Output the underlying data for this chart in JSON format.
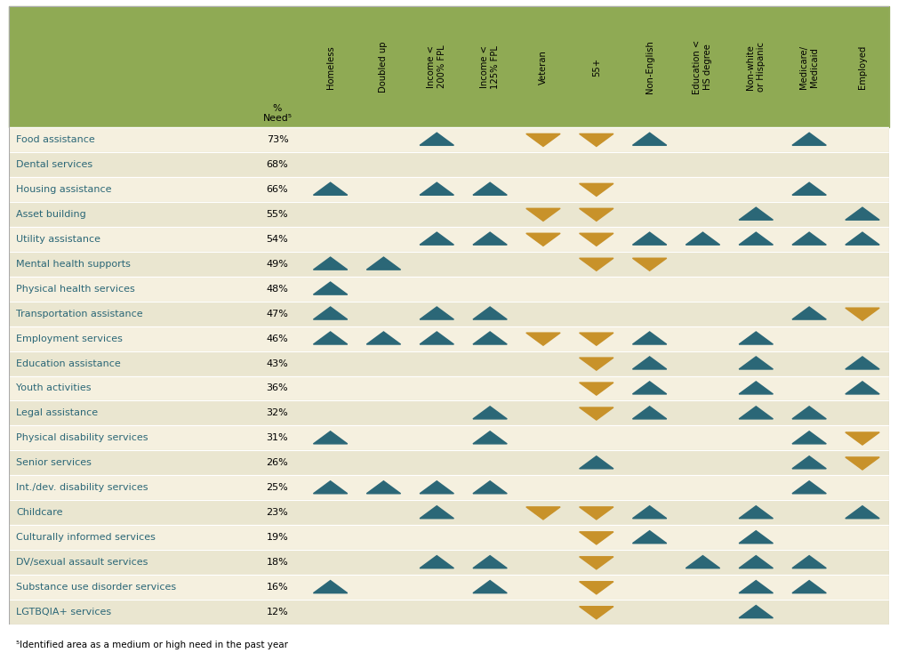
{
  "header_bg": "#8faa54",
  "row_bg_even": "#f5f0df",
  "row_bg_odd": "#eae6d0",
  "tri_up_color": "#2b6777",
  "tri_down_color": "#c8922a",
  "cat_text_color": "#2b6777",
  "border_color": "#999999",
  "footnote_color": "#333333",
  "categories": [
    "Food assistance",
    "Dental services",
    "Housing assistance",
    "Asset building",
    "Utility assistance",
    "Mental health supports",
    "Physical health services",
    "Transportation assistance",
    "Employment services",
    "Education assistance",
    "Youth activities",
    "Legal assistance",
    "Physical disability services",
    "Senior services",
    "Int./dev. disability services",
    "Childcare",
    "Culturally informed services",
    "DV/sexual assault services",
    "Substance use disorder services",
    "LGTBQIA+ services"
  ],
  "percentages": [
    "73%",
    "68%",
    "66%",
    "55%",
    "54%",
    "49%",
    "48%",
    "47%",
    "46%",
    "43%",
    "36%",
    "32%",
    "31%",
    "26%",
    "25%",
    "23%",
    "19%",
    "18%",
    "16%",
    "12%"
  ],
  "columns": [
    "Homeless",
    "Doubled up",
    "Income <\n200% FPL",
    "Income <\n125% FPL",
    "Veteran",
    "55+",
    "Non-English",
    "Education <\nHS degree",
    "Non-white\nor Hispanic",
    "Medicare/\nMedicaid",
    "Employed"
  ],
  "data": {
    "Food assistance": [
      0,
      0,
      1,
      0,
      -1,
      -1,
      1,
      0,
      0,
      1,
      0
    ],
    "Dental services": [
      0,
      0,
      0,
      0,
      0,
      0,
      0,
      0,
      0,
      0,
      0
    ],
    "Housing assistance": [
      1,
      0,
      1,
      1,
      0,
      -1,
      0,
      0,
      0,
      1,
      0
    ],
    "Asset building": [
      0,
      0,
      0,
      0,
      -1,
      -1,
      0,
      0,
      1,
      0,
      1
    ],
    "Utility assistance": [
      0,
      0,
      1,
      1,
      -1,
      -1,
      1,
      1,
      1,
      1,
      1
    ],
    "Mental health supports": [
      1,
      1,
      0,
      0,
      0,
      -1,
      -1,
      0,
      0,
      0,
      0
    ],
    "Physical health services": [
      1,
      0,
      0,
      0,
      0,
      0,
      0,
      0,
      0,
      0,
      0
    ],
    "Transportation assistance": [
      1,
      0,
      1,
      1,
      0,
      0,
      0,
      0,
      0,
      1,
      -1
    ],
    "Employment services": [
      1,
      1,
      1,
      1,
      -1,
      -1,
      1,
      0,
      1,
      0,
      0
    ],
    "Education assistance": [
      0,
      0,
      0,
      0,
      0,
      -1,
      1,
      0,
      1,
      0,
      1
    ],
    "Youth activities": [
      0,
      0,
      0,
      0,
      0,
      -1,
      1,
      0,
      1,
      0,
      1
    ],
    "Legal assistance": [
      0,
      0,
      0,
      1,
      0,
      -1,
      1,
      0,
      1,
      1,
      0
    ],
    "Physical disability services": [
      1,
      0,
      0,
      1,
      0,
      0,
      0,
      0,
      0,
      1,
      -1
    ],
    "Senior services": [
      0,
      0,
      0,
      0,
      0,
      1,
      0,
      0,
      0,
      1,
      -1
    ],
    "Int./dev. disability services": [
      1,
      1,
      1,
      1,
      0,
      0,
      0,
      0,
      0,
      1,
      0
    ],
    "Childcare": [
      0,
      0,
      1,
      0,
      -1,
      -1,
      1,
      0,
      1,
      0,
      1
    ],
    "Culturally informed services": [
      0,
      0,
      0,
      0,
      0,
      -1,
      1,
      0,
      1,
      0,
      0
    ],
    "DV/sexual assault services": [
      0,
      0,
      1,
      1,
      0,
      -1,
      0,
      1,
      1,
      1,
      0
    ],
    "Substance use disorder services": [
      1,
      0,
      0,
      1,
      0,
      -1,
      0,
      0,
      1,
      1,
      0
    ],
    "LGTBQIA+ services": [
      0,
      0,
      0,
      0,
      0,
      -1,
      0,
      0,
      1,
      0,
      0
    ]
  }
}
